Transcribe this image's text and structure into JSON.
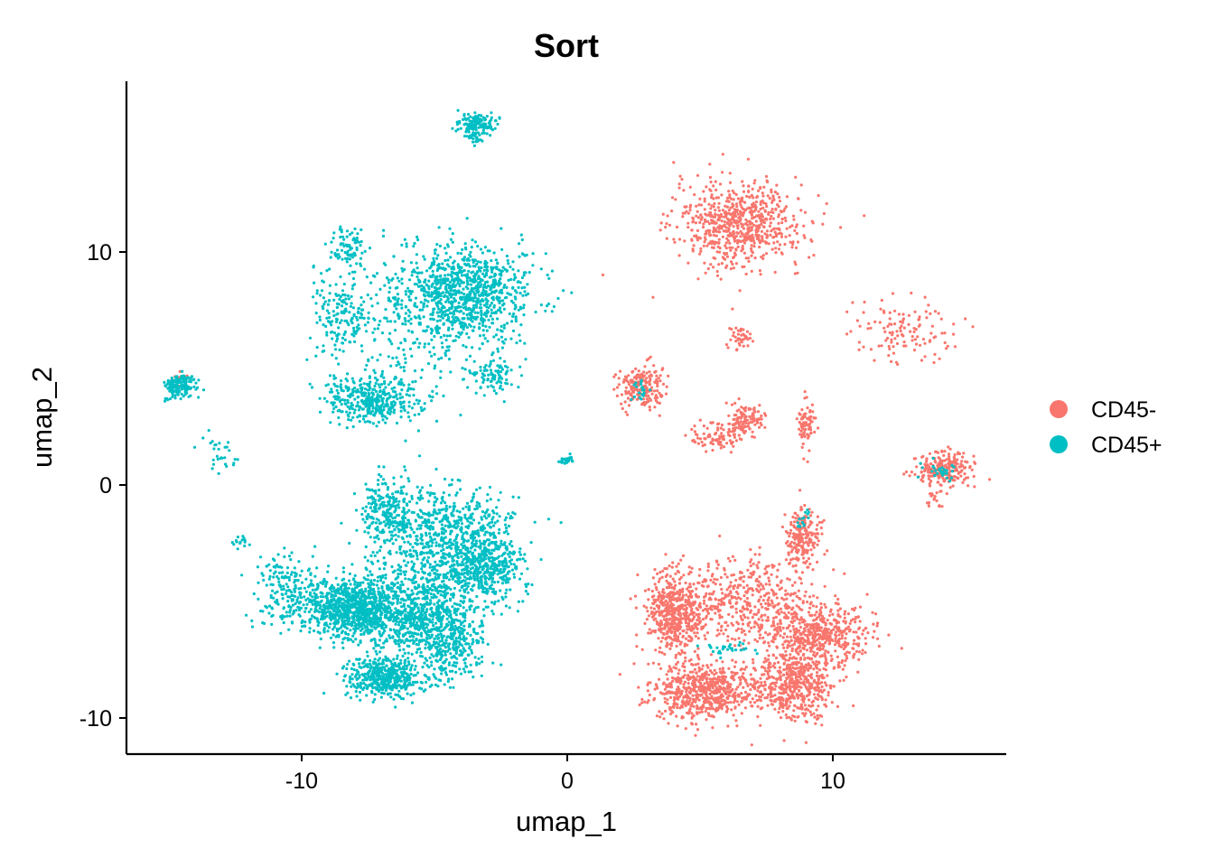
{
  "chart_data": {
    "type": "scatter",
    "title": "Sort",
    "xlabel": "umap_1",
    "ylabel": "umap_2",
    "xlim": [
      -16.5,
      16.5
    ],
    "ylim": [
      -11.5,
      17.3
    ],
    "xticks": [
      -10,
      0,
      10
    ],
    "yticks": [
      -10,
      0,
      10
    ],
    "x_tick_labels": [
      "-10",
      "0",
      "10"
    ],
    "y_tick_labels": [
      "-10",
      "0",
      "10"
    ],
    "grid": false,
    "legend_position": "right",
    "series": [
      {
        "name": "CD45-",
        "color": "#F8766D",
        "clusters": [
          {
            "cx": 6.5,
            "cy": 11.2,
            "sx": 1.2,
            "sy": 0.9,
            "n": 700
          },
          {
            "cx": 6.5,
            "cy": 6.3,
            "sx": 0.2,
            "sy": 0.25,
            "n": 40
          },
          {
            "cx": 2.8,
            "cy": 4.2,
            "sx": 0.45,
            "sy": 0.45,
            "n": 200
          },
          {
            "cx": 6.7,
            "cy": 2.8,
            "sx": 0.35,
            "sy": 0.3,
            "n": 120
          },
          {
            "cx": 5.7,
            "cy": 2.1,
            "sx": 0.5,
            "sy": 0.3,
            "n": 90
          },
          {
            "cx": 9.0,
            "cy": 2.6,
            "sx": 0.15,
            "sy": 0.5,
            "n": 80
          },
          {
            "cx": 12.6,
            "cy": 6.7,
            "sx": 1.0,
            "sy": 0.7,
            "n": 120
          },
          {
            "cx": 14.2,
            "cy": 0.7,
            "sx": 0.6,
            "sy": 0.35,
            "n": 220
          },
          {
            "cx": 13.9,
            "cy": -0.5,
            "sx": 0.2,
            "sy": 0.3,
            "n": 20
          },
          {
            "cx": 8.9,
            "cy": -2.2,
            "sx": 0.3,
            "sy": 0.6,
            "n": 200
          },
          {
            "cx": 4.0,
            "cy": -5.5,
            "sx": 0.5,
            "sy": 0.8,
            "n": 500
          },
          {
            "cx": 6.5,
            "cy": -5.0,
            "sx": 1.3,
            "sy": 1.0,
            "n": 450
          },
          {
            "cx": 9.5,
            "cy": -6.3,
            "sx": 0.9,
            "sy": 0.7,
            "n": 500
          },
          {
            "cx": 5.2,
            "cy": -8.8,
            "sx": 1.0,
            "sy": 0.6,
            "n": 650
          },
          {
            "cx": 8.6,
            "cy": -8.5,
            "sx": 0.7,
            "sy": 0.8,
            "n": 500
          },
          {
            "cx": -14.6,
            "cy": 4.5,
            "sx": 0.15,
            "sy": 0.15,
            "n": 10
          }
        ]
      },
      {
        "name": "CD45+",
        "color": "#00BFC4",
        "clusters": [
          {
            "cx": -3.4,
            "cy": 15.5,
            "sx": 0.35,
            "sy": 0.2,
            "n": 130
          },
          {
            "cx": -3.4,
            "cy": 14.9,
            "sx": 0.15,
            "sy": 0.2,
            "n": 30
          },
          {
            "cx": -8.4,
            "cy": 7.5,
            "sx": 0.6,
            "sy": 0.9,
            "n": 150
          },
          {
            "cx": -8.2,
            "cy": 10.2,
            "sx": 0.3,
            "sy": 0.5,
            "n": 80
          },
          {
            "cx": -7.3,
            "cy": 3.6,
            "sx": 0.8,
            "sy": 0.45,
            "n": 350
          },
          {
            "cx": -6.0,
            "cy": 6.5,
            "sx": 1.5,
            "sy": 1.6,
            "n": 280
          },
          {
            "cx": -3.8,
            "cy": 8.3,
            "sx": 1.2,
            "sy": 1.0,
            "n": 900
          },
          {
            "cx": -2.8,
            "cy": 4.8,
            "sx": 0.4,
            "sy": 0.4,
            "n": 90
          },
          {
            "cx": -14.5,
            "cy": 4.3,
            "sx": 0.3,
            "sy": 0.25,
            "n": 150
          },
          {
            "cx": -13.0,
            "cy": 1.3,
            "sx": 0.3,
            "sy": 0.4,
            "n": 30
          },
          {
            "cx": 0.0,
            "cy": 1.1,
            "sx": 0.15,
            "sy": 0.1,
            "n": 30
          },
          {
            "cx": -6.8,
            "cy": -1.3,
            "sx": 0.5,
            "sy": 0.8,
            "n": 250
          },
          {
            "cx": -4.3,
            "cy": -2.5,
            "sx": 1.2,
            "sy": 1.2,
            "n": 800
          },
          {
            "cx": -3.0,
            "cy": -3.6,
            "sx": 0.6,
            "sy": 0.6,
            "n": 300
          },
          {
            "cx": -10.5,
            "cy": -4.5,
            "sx": 0.6,
            "sy": 0.8,
            "n": 180
          },
          {
            "cx": -8.0,
            "cy": -5.2,
            "sx": 0.9,
            "sy": 0.7,
            "n": 900
          },
          {
            "cx": -5.5,
            "cy": -5.5,
            "sx": 1.0,
            "sy": 0.9,
            "n": 700
          },
          {
            "cx": -6.8,
            "cy": -8.2,
            "sx": 0.7,
            "sy": 0.4,
            "n": 450
          },
          {
            "cx": -4.3,
            "cy": -7.0,
            "sx": 0.6,
            "sy": 0.7,
            "n": 250
          },
          {
            "cx": -12.3,
            "cy": -2.4,
            "sx": 0.2,
            "sy": 0.15,
            "n": 15
          },
          {
            "cx": 6.2,
            "cy": -7.0,
            "sx": 0.6,
            "sy": 0.15,
            "n": 30
          },
          {
            "cx": 2.8,
            "cy": 4.0,
            "sx": 0.2,
            "sy": 0.2,
            "n": 20
          },
          {
            "cx": 14.0,
            "cy": 0.6,
            "sx": 0.3,
            "sy": 0.2,
            "n": 30
          },
          {
            "cx": 8.9,
            "cy": -1.5,
            "sx": 0.15,
            "sy": 0.3,
            "n": 15
          }
        ]
      }
    ]
  }
}
